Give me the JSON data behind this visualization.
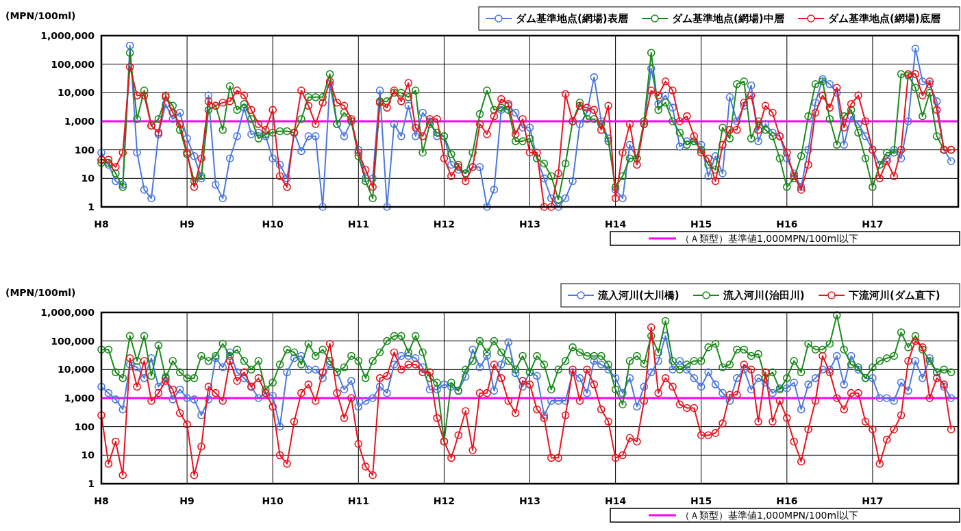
{
  "chart_data": [
    {
      "type": "line",
      "ylabel": "(MPN/100ml)",
      "log": "y",
      "grid": true,
      "legend": "right",
      "marker": "circle",
      "ylim": [
        1,
        1000000
      ],
      "yticks": [
        1,
        10,
        100,
        {
          "value": 1000,
          "label": "1,000"
        },
        {
          "value": 10000,
          "label": "10,000"
        },
        {
          "value": 100000,
          "label": "100,000"
        },
        {
          "value": 1000000,
          "label": "1,000,000"
        }
      ],
      "categories": [
        "H8",
        null,
        null,
        null,
        null,
        null,
        null,
        null,
        null,
        null,
        null,
        null,
        "H9",
        null,
        null,
        null,
        null,
        null,
        null,
        null,
        null,
        null,
        null,
        null,
        "H10",
        null,
        null,
        null,
        null,
        null,
        null,
        null,
        null,
        null,
        null,
        null,
        "H11",
        null,
        null,
        null,
        null,
        null,
        null,
        null,
        null,
        null,
        null,
        null,
        "H12",
        null,
        null,
        null,
        null,
        null,
        null,
        null,
        null,
        null,
        null,
        null,
        "H13",
        null,
        null,
        null,
        null,
        null,
        null,
        null,
        null,
        null,
        null,
        null,
        "H14",
        null,
        null,
        null,
        null,
        null,
        null,
        null,
        null,
        null,
        null,
        null,
        "H15",
        null,
        null,
        null,
        null,
        null,
        null,
        null,
        null,
        null,
        null,
        null,
        "H16",
        null,
        null,
        null,
        null,
        null,
        null,
        null,
        null,
        null,
        null,
        null,
        "H17",
        null,
        null,
        null,
        null,
        null,
        null,
        null,
        null,
        null,
        null,
        null
      ],
      "ref_lines": [
        {
          "axis": "y",
          "value": 1000,
          "label": "（Ａ類型）基準値1,000MPN/100ml以下",
          "color": "#ff00ff"
        }
      ],
      "series": [
        {
          "name": "ダム基準地点(網場)表層",
          "color": "#4a78e0",
          "values": [
            80,
            30,
            8,
            6,
            450000,
            80,
            4,
            2,
            350,
            4000,
            1200,
            2000,
            250,
            60,
            10,
            8000,
            6,
            2,
            50,
            300,
            3000,
            350,
            400,
            300,
            50,
            30,
            10,
            400,
            90,
            300,
            300,
            1,
            20000,
            800,
            300,
            1000,
            100,
            10,
            10,
            12000,
            1,
            800,
            300,
            3500,
            300,
            2000,
            1000,
            300,
            300,
            30,
            20,
            15,
            25,
            25,
            1,
            4,
            2500,
            3500,
            2000,
            600,
            600,
            50,
            10,
            2,
            1,
            2,
            8,
            800,
            2000,
            35000,
            1000,
            250,
            4,
            2,
            150,
            50,
            800,
            70000,
            4000,
            8000,
            3000,
            130,
            200,
            200,
            150,
            12,
            60,
            15,
            7000,
            1000,
            3500,
            18000,
            200,
            800,
            400,
            300,
            50,
            15,
            5,
            100,
            4500,
            30000,
            20000,
            10000,
            150,
            1500,
            800,
            300,
            100,
            30,
            50,
            100,
            50,
            1000,
            350000,
            25000,
            20000,
            5000,
            100,
            40
          ]
        },
        {
          "name": "ダム基準地点(網場)中層",
          "color": "#1a8a1a",
          "values": [
            35,
            35,
            15,
            5,
            250000,
            1200,
            12000,
            700,
            1200,
            7000,
            3500,
            500,
            70,
            8,
            12,
            2500,
            3500,
            500,
            17000,
            2500,
            4000,
            1200,
            250,
            350,
            400,
            450,
            450,
            400,
            1200,
            7000,
            7000,
            7000,
            45000,
            800,
            2000,
            1000,
            60,
            8,
            2,
            5000,
            5000,
            10000,
            10000,
            7000,
            12000,
            80,
            800,
            400,
            300,
            70,
            25,
            15,
            80,
            1800,
            12000,
            2500,
            3000,
            2500,
            200,
            200,
            250,
            50,
            33,
            12,
            1.8,
            33,
            1000,
            4500,
            1200,
            1200,
            800,
            200,
            5,
            12,
            50,
            50,
            1000,
            250000,
            2500,
            4500,
            1000,
            400,
            150,
            200,
            100,
            30,
            20,
            600,
            250,
            20000,
            25000,
            250,
            1000,
            500,
            300,
            50,
            5,
            10,
            60,
            1500,
            20000,
            25000,
            1200,
            150,
            1500,
            2500,
            400,
            50,
            5,
            30,
            80,
            80,
            45000,
            40000,
            15000,
            1500,
            10000,
            300,
            100,
            100
          ]
        },
        {
          "name": "ダム基準地点(網場)底層",
          "color": "#e8141e",
          "values": [
            45,
            45,
            25,
            80,
            80000,
            8000,
            8000,
            700,
            400,
            8000,
            2000,
            800,
            80,
            5,
            50,
            5000,
            3500,
            4500,
            5000,
            12000,
            8000,
            2500,
            800,
            500,
            2500,
            12,
            5,
            400,
            12000,
            3500,
            800,
            4500,
            25000,
            4500,
            3500,
            1200,
            80,
            20,
            5,
            4500,
            3000,
            12000,
            5000,
            22000,
            600,
            300,
            1200,
            1200,
            50,
            12,
            30,
            8,
            25,
            800,
            350,
            1500,
            6000,
            4000,
            350,
            1200,
            80,
            80,
            1,
            1,
            15,
            9000,
            1000,
            3500,
            3000,
            2500,
            500,
            3500,
            2,
            80,
            800,
            30,
            800,
            12000,
            8000,
            25000,
            12000,
            1000,
            1500,
            300,
            80,
            50,
            8,
            150,
            500,
            500,
            4500,
            8000,
            500,
            3500,
            2000,
            300,
            80,
            12,
            4,
            30,
            2000,
            8000,
            3000,
            15000,
            600,
            4000,
            8000,
            1000,
            100,
            10,
            40,
            12,
            100,
            45000,
            45000,
            8000,
            25000,
            2500,
            100,
            100
          ]
        }
      ]
    },
    {
      "type": "line",
      "ylabel": "(MPN/100ml)",
      "log": "y",
      "grid": true,
      "legend": "right",
      "marker": "circle",
      "ylim": [
        1,
        1000000
      ],
      "yticks": [
        1,
        10,
        100,
        {
          "value": 1000,
          "label": "1,000"
        },
        {
          "value": 10000,
          "label": "10,000"
        },
        {
          "value": 100000,
          "label": "100,000"
        },
        {
          "value": 1000000,
          "label": "1,000,000"
        }
      ],
      "categories": [
        "H8",
        null,
        null,
        null,
        null,
        null,
        null,
        null,
        null,
        null,
        null,
        null,
        "H9",
        null,
        null,
        null,
        null,
        null,
        null,
        null,
        null,
        null,
        null,
        null,
        "H10",
        null,
        null,
        null,
        null,
        null,
        null,
        null,
        null,
        null,
        null,
        null,
        "H11",
        null,
        null,
        null,
        null,
        null,
        null,
        null,
        null,
        null,
        null,
        null,
        "H12",
        null,
        null,
        null,
        null,
        null,
        null,
        null,
        null,
        null,
        null,
        null,
        "H13",
        null,
        null,
        null,
        null,
        null,
        null,
        null,
        null,
        null,
        null,
        null,
        "H14",
        null,
        null,
        null,
        null,
        null,
        null,
        null,
        null,
        null,
        null,
        null,
        "H15",
        null,
        null,
        null,
        null,
        null,
        null,
        null,
        null,
        null,
        null,
        null,
        "H16",
        null,
        null,
        null,
        null,
        null,
        null,
        null,
        null,
        null,
        null,
        null,
        "H17",
        null,
        null,
        null,
        null,
        null,
        null,
        null,
        null,
        null,
        null,
        null
      ],
      "ref_lines": [
        {
          "axis": "y",
          "value": 1000,
          "label": "（Ａ類型）基準値1,000MPN/100ml以下",
          "color": "#ff00ff"
        }
      ],
      "series": [
        {
          "name": "流入河川(大川橋)",
          "color": "#4a78e0",
          "values": [
            2500,
            1500,
            900,
            400,
            15000,
            12000,
            5000,
            25000,
            2500,
            5600,
            900,
            2000,
            1000,
            900,
            250,
            900,
            25000,
            12000,
            40000,
            8000,
            5000,
            2500,
            1000,
            1500,
            1200,
            100,
            8000,
            25000,
            30000,
            10000,
            10000,
            5000,
            15000,
            8000,
            2000,
            4000,
            500,
            800,
            1000,
            2500,
            1500,
            15000,
            30000,
            30000,
            25000,
            12000,
            2000,
            2000,
            3000,
            2500,
            1800,
            5600,
            50000,
            12000,
            30000,
            1800,
            15000,
            90000,
            7500,
            2500,
            8000,
            6000,
            250,
            800,
            800,
            800,
            8000,
            5000,
            1500,
            20000,
            15000,
            10000,
            5000,
            1500,
            5000,
            500,
            2500,
            8000,
            20000,
            150000,
            10000,
            20000,
            10000,
            5000,
            2500,
            8000,
            3000,
            1500,
            800,
            5000,
            10000,
            2000,
            5000,
            3500,
            1500,
            2200,
            2200,
            3500,
            400,
            3000,
            5000,
            10000,
            10000,
            30000,
            3000,
            30000,
            10000,
            5000,
            5000,
            1000,
            1000,
            800,
            3500,
            1800,
            20000,
            5000,
            25000,
            8000,
            2500,
            1000
          ]
        },
        {
          "name": "流入河川(治田川)",
          "color": "#1a8a1a",
          "values": [
            50000,
            50000,
            8000,
            5000,
            150000,
            20000,
            150000,
            6000,
            70000,
            5000,
            20000,
            8000,
            5000,
            5000,
            30000,
            20000,
            30000,
            80000,
            30000,
            50000,
            20000,
            10000,
            20000,
            2000,
            3500,
            15000,
            50000,
            40000,
            15000,
            80000,
            30000,
            50000,
            20000,
            8000,
            12000,
            30000,
            20000,
            5000,
            20000,
            40000,
            100000,
            150000,
            150000,
            40000,
            150000,
            40000,
            5000,
            3500,
            30,
            3500,
            1800,
            10000,
            20000,
            100000,
            40000,
            100000,
            40000,
            20000,
            10000,
            30000,
            8000,
            30000,
            15000,
            2000,
            10000,
            20000,
            60000,
            40000,
            30000,
            30000,
            30000,
            15000,
            2000,
            600,
            20000,
            30000,
            16000,
            150000,
            40000,
            500000,
            20000,
            10000,
            15000,
            20000,
            20000,
            60000,
            80000,
            12000,
            15000,
            50000,
            50000,
            30000,
            35000,
            5000,
            8000,
            2000,
            5000,
            20000,
            8000,
            80000,
            50000,
            50000,
            80000,
            800000,
            50000,
            15000,
            12000,
            5000,
            12000,
            20000,
            25000,
            30000,
            200000,
            60000,
            150000,
            50000,
            20000,
            8000,
            10000,
            8000
          ]
        },
        {
          "name": "下流河川(ダム直下)",
          "color": "#e8141e",
          "values": [
            250,
            5,
            30,
            2,
            25000,
            2500,
            20000,
            800,
            1500,
            4000,
            2000,
            300,
            120,
            2,
            20,
            2500,
            1500,
            800,
            20000,
            4000,
            8000,
            2500,
            5000,
            1500,
            500,
            10,
            5,
            150,
            1500,
            3000,
            800,
            8000,
            80000,
            1500,
            200,
            1000,
            25,
            4,
            2,
            5000,
            6000,
            40000,
            10000,
            15000,
            15000,
            8000,
            8000,
            200,
            30,
            8,
            50,
            350,
            15,
            1500,
            1500,
            15000,
            5000,
            800,
            300,
            4000,
            3000,
            400,
            200,
            8,
            8,
            250,
            10000,
            800,
            10000,
            3000,
            400,
            150,
            8,
            10,
            40,
            30,
            800,
            300000,
            1500,
            5000,
            2500,
            600,
            450,
            450,
            50,
            50,
            60,
            130,
            1300,
            1300,
            15000,
            10000,
            150,
            8000,
            150,
            800,
            200,
            30,
            6,
            80,
            800,
            30000,
            8000,
            1000,
            400,
            1500,
            1500,
            150,
            80,
            5,
            35,
            80,
            250,
            20000,
            100000,
            60000,
            1000,
            5000,
            3000,
            80
          ]
        }
      ]
    }
  ]
}
